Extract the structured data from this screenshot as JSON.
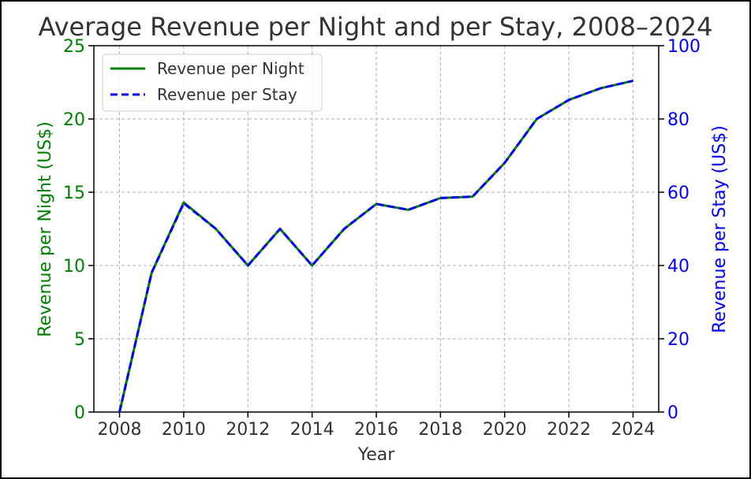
{
  "chart_data": {
    "type": "line",
    "title": "Average Revenue per Night and per Stay, 2008–2024",
    "xlabel": "Year",
    "ylabel_left": "Revenue per Night (US$)",
    "ylabel_right": "Revenue per Stay (US$)",
    "x": [
      2008,
      2009,
      2010,
      2011,
      2012,
      2013,
      2014,
      2015,
      2016,
      2017,
      2018,
      2019,
      2020,
      2021,
      2022,
      2023,
      2024
    ],
    "x_ticks": [
      "2008",
      "2010",
      "2012",
      "2014",
      "2016",
      "2018",
      "2020",
      "2022",
      "2024"
    ],
    "xlim": [
      2007.2,
      2024.8
    ],
    "ylim_left": [
      0,
      25
    ],
    "ylim_right": [
      0,
      100
    ],
    "y_ticks_left": [
      "0",
      "5",
      "10",
      "15",
      "20",
      "25"
    ],
    "y_ticks_right": [
      "0",
      "20",
      "40",
      "60",
      "80",
      "100"
    ],
    "grid": true,
    "legend_position": "top-left",
    "series": [
      {
        "name": "Revenue per Night",
        "axis": "left",
        "style": "solid",
        "color": "#008000",
        "values": [
          0,
          9.5,
          14.3,
          12.5,
          10.0,
          12.5,
          10.0,
          12.5,
          14.2,
          13.8,
          14.6,
          14.7,
          17.0,
          20.0,
          21.3,
          22.1,
          22.6
        ]
      },
      {
        "name": "Revenue per Stay",
        "axis": "right",
        "style": "dashed",
        "color": "#0000ff",
        "values": [
          0,
          38,
          57,
          50,
          40,
          50,
          40,
          50,
          56.8,
          55.2,
          58.4,
          58.8,
          68,
          80,
          85.2,
          88.4,
          90.4
        ]
      }
    ],
    "colors": {
      "left_axis": "#008000",
      "right_axis": "#0000ff",
      "text": "#333333",
      "grid": "#b0b0b0"
    }
  }
}
